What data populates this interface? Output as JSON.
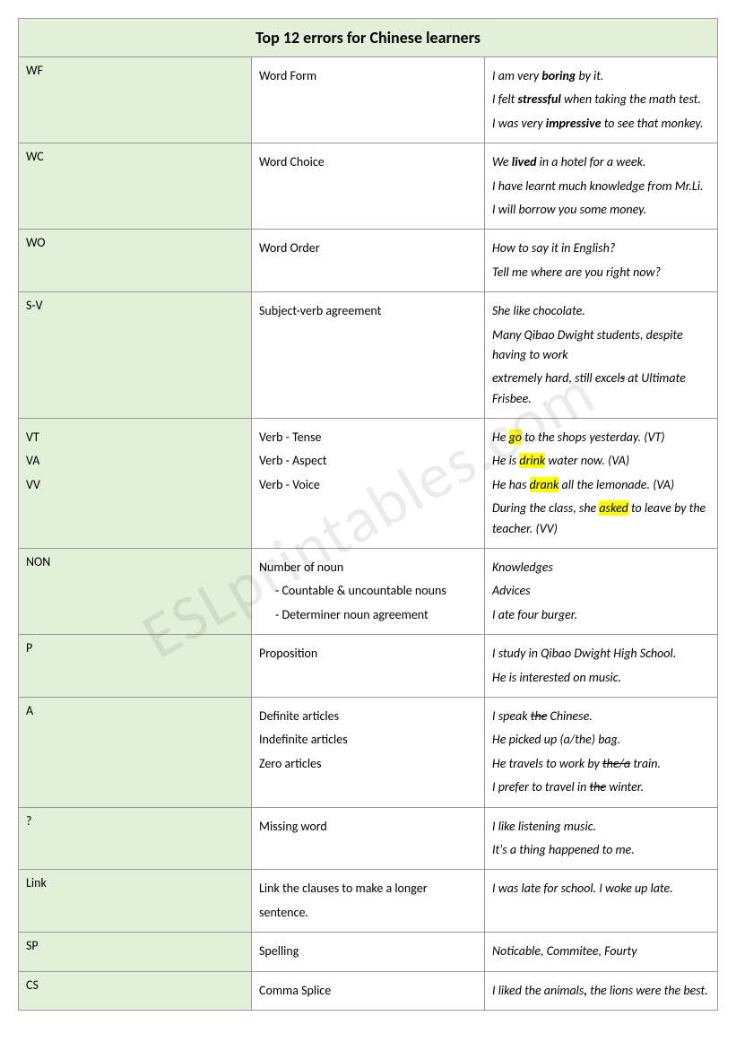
{
  "watermark": "ESLprintables.com",
  "title": "Top 12 errors for Chinese learners",
  "rows": [
    {
      "code": "WF",
      "desc": [
        "Word Form"
      ],
      "ex": [
        {
          "segs": [
            {
              "t": "I am very "
            },
            {
              "t": "boring",
              "b": true
            },
            {
              "t": " by it."
            }
          ]
        },
        {
          "segs": [
            {
              "t": "I felt "
            },
            {
              "t": "stressful",
              "b": true
            },
            {
              "t": " when taking the math test."
            }
          ]
        },
        {
          "segs": [
            {
              "t": "I was very "
            },
            {
              "t": "impressive",
              "b": true
            },
            {
              "t": " to see that monkey."
            }
          ]
        }
      ]
    },
    {
      "code": "WC",
      "desc": [
        "Word Choice"
      ],
      "ex": [
        {
          "segs": [
            {
              "t": "We "
            },
            {
              "t": "lived",
              "b": true
            },
            {
              "t": " in a hotel for a week."
            }
          ]
        },
        {
          "segs": [
            {
              "t": "I have learnt much knowledge from Mr.Li."
            }
          ]
        },
        {
          "segs": [
            {
              "t": "I will borrow you some money."
            }
          ]
        }
      ]
    },
    {
      "code": "WO",
      "desc": [
        "Word Order"
      ],
      "ex": [
        {
          "segs": [
            {
              "t": "How to say it in English?"
            }
          ]
        },
        {
          "segs": [
            {
              "t": "Tell me where are you right now?"
            }
          ]
        }
      ]
    },
    {
      "code": "S-V",
      "desc": [
        "Subject-verb agreement"
      ],
      "ex": [
        {
          "segs": [
            {
              "t": "She like chocolate."
            }
          ]
        },
        {
          "segs": [
            {
              "t": "Many Qibao Dwight students, despite having to work"
            }
          ]
        },
        {
          "segs": [
            {
              "t": "extremely hard, still excel"
            },
            {
              "t": "s",
              "s": true
            },
            {
              "t": " at Ultimate Frisbee."
            }
          ]
        }
      ]
    },
    {
      "codes": [
        "VT",
        "VA",
        "VV"
      ],
      "desc": [
        "Verb - Tense",
        "Verb - Aspect",
        "Verb - Voice"
      ],
      "ex": [
        {
          "segs": [
            {
              "t": "He "
            },
            {
              "t": "go",
              "hl": true
            },
            {
              "t": " to the shops yesterday. (VT)"
            }
          ]
        },
        {
          "segs": [
            {
              "t": "He is "
            },
            {
              "t": "drink",
              "hl": true
            },
            {
              "t": " water now. (VA)"
            }
          ]
        },
        {
          "segs": [
            {
              "t": "He has "
            },
            {
              "t": "drank",
              "hl": true
            },
            {
              "t": " all the lemonade. (VA)"
            }
          ]
        },
        {
          "segs": [
            {
              "t": "During the class, she "
            },
            {
              "t": "asked",
              "hl": true
            },
            {
              "t": " to leave by the teacher. (VV)"
            }
          ]
        }
      ]
    },
    {
      "code": "NON",
      "desc": [
        "Number of noun",
        "-    Countable & uncountable nouns",
        "-    Determiner noun agreement"
      ],
      "descIndent": [
        false,
        true,
        true
      ],
      "ex": [
        {
          "segs": [
            {
              "t": "Knowledges"
            }
          ]
        },
        {
          "segs": [
            {
              "t": "Advices"
            }
          ]
        },
        {
          "segs": [
            {
              "t": "I ate four burger."
            }
          ]
        }
      ]
    },
    {
      "code": "P",
      "desc": [
        "Proposition"
      ],
      "ex": [
        {
          "segs": [
            {
              "t": "I study in Qibao Dwight High School."
            }
          ]
        },
        {
          "segs": [
            {
              "t": "He is interested on music."
            }
          ]
        }
      ]
    },
    {
      "code": "A",
      "desc": [
        "Definite articles",
        "Indefinite articles",
        "Zero articles"
      ],
      "ex": [
        {
          "segs": [
            {
              "t": "I speak "
            },
            {
              "t": "the",
              "s": true
            },
            {
              "t": " Chinese."
            }
          ]
        },
        {
          "segs": [
            {
              "t": "He picked up "
            },
            {
              "t": "(a/the)"
            },
            {
              "t": " bag."
            }
          ]
        },
        {
          "segs": [
            {
              "t": "He travels to work by "
            },
            {
              "t": "the/a",
              "s": true
            },
            {
              "t": " train."
            }
          ]
        },
        {
          "segs": [
            {
              "t": "I prefer to travel in "
            },
            {
              "t": "the",
              "s": true
            },
            {
              "t": " winter."
            }
          ]
        }
      ]
    },
    {
      "code": "?",
      "desc": [
        "Missing word"
      ],
      "ex": [
        {
          "segs": [
            {
              "t": "I like listening music."
            }
          ]
        },
        {
          "segs": [
            {
              "t": "It's a thing happened to me."
            }
          ]
        }
      ]
    },
    {
      "code": "Link",
      "desc": [
        "Link the clauses to make a longer",
        "sentence."
      ],
      "ex": [
        {
          "segs": [
            {
              "t": "I was late for school. I woke up late."
            }
          ]
        }
      ]
    },
    {
      "code": "SP",
      "desc": [
        "Spelling"
      ],
      "ex": [
        {
          "segs": [
            {
              "t": "Noticable, Commitee, Fourty"
            }
          ]
        }
      ]
    },
    {
      "code": "CS",
      "desc": [
        "Comma Splice"
      ],
      "ex": [
        {
          "segs": [
            {
              "t": "I liked the animals"
            },
            {
              "t": ",",
              "b": true
            },
            {
              "t": " the lions were the best."
            }
          ]
        }
      ]
    }
  ]
}
